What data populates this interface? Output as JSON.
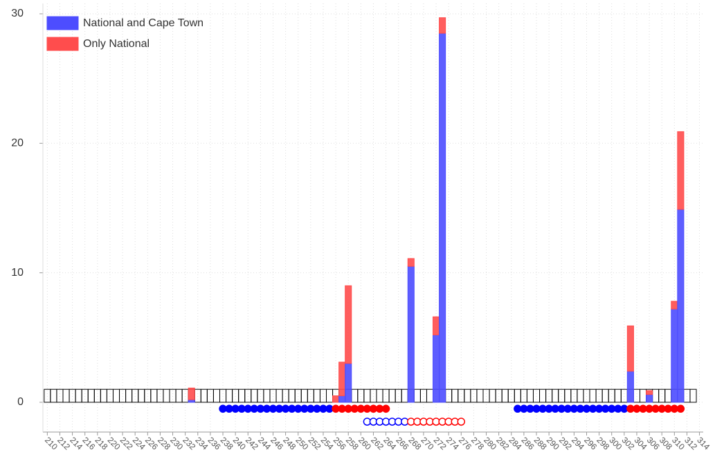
{
  "chart_data": {
    "type": "bar",
    "x": [
      233,
      256,
      257,
      258,
      268,
      272,
      273,
      303,
      306,
      310,
      311
    ],
    "series": [
      {
        "name": "National and Cape Town",
        "color": "#4d4dff",
        "values": [
          0.2,
          0,
          0.5,
          3.0,
          10.5,
          5.2,
          28.5,
          2.4,
          0.6,
          7.2,
          14.9
        ]
      },
      {
        "name": "Only National",
        "color": "#ff4d4d",
        "values": [
          0.9,
          0.5,
          2.6,
          6.0,
          0.6,
          1.4,
          1.2,
          3.5,
          0.3,
          0.6,
          6.0
        ]
      }
    ],
    "boxes": {
      "start": 210,
      "end": 313,
      "height": 1,
      "color": "#000000"
    },
    "markers": [
      {
        "color": "#0000ff",
        "filled": true,
        "y": -0.5,
        "x": [
          238,
          239,
          240,
          241,
          242,
          243,
          244,
          245,
          246,
          247,
          248,
          249,
          250,
          251,
          252,
          253,
          254,
          255
        ]
      },
      {
        "color": "#ff0000",
        "filled": true,
        "y": -0.5,
        "x": [
          256,
          257,
          258,
          259,
          260,
          261,
          262,
          263,
          264
        ]
      },
      {
        "color": "#0000ff",
        "filled": false,
        "y": -1.5,
        "x": [
          261,
          262,
          263,
          264,
          265,
          266,
          267
        ]
      },
      {
        "color": "#ff0000",
        "filled": false,
        "y": -1.5,
        "x": [
          268,
          269,
          270,
          271,
          272,
          273,
          274,
          275,
          276
        ]
      },
      {
        "color": "#0000ff",
        "filled": true,
        "y": -0.5,
        "x": [
          285,
          286,
          287,
          288,
          289,
          290,
          291,
          292,
          293,
          294,
          295,
          296,
          297,
          298,
          299,
          300,
          301,
          302
        ]
      },
      {
        "color": "#ff0000",
        "filled": true,
        "y": -0.5,
        "x": [
          303,
          304,
          305,
          306,
          307,
          308,
          309,
          310,
          311
        ]
      }
    ],
    "xlim": [
      209.3,
      314.6
    ],
    "ylim": [
      -2.3,
      30.8
    ],
    "xticks": [
      210,
      212,
      214,
      216,
      218,
      220,
      222,
      224,
      226,
      228,
      230,
      232,
      234,
      236,
      238,
      240,
      242,
      244,
      246,
      248,
      250,
      252,
      254,
      256,
      258,
      260,
      262,
      264,
      266,
      268,
      270,
      272,
      274,
      276,
      278,
      280,
      282,
      284,
      286,
      288,
      290,
      292,
      294,
      296,
      298,
      300,
      302,
      304,
      306,
      308,
      310,
      312,
      314
    ],
    "yticks": [
      0,
      10,
      20,
      30
    ],
    "grid": true,
    "legend": "top-left"
  }
}
